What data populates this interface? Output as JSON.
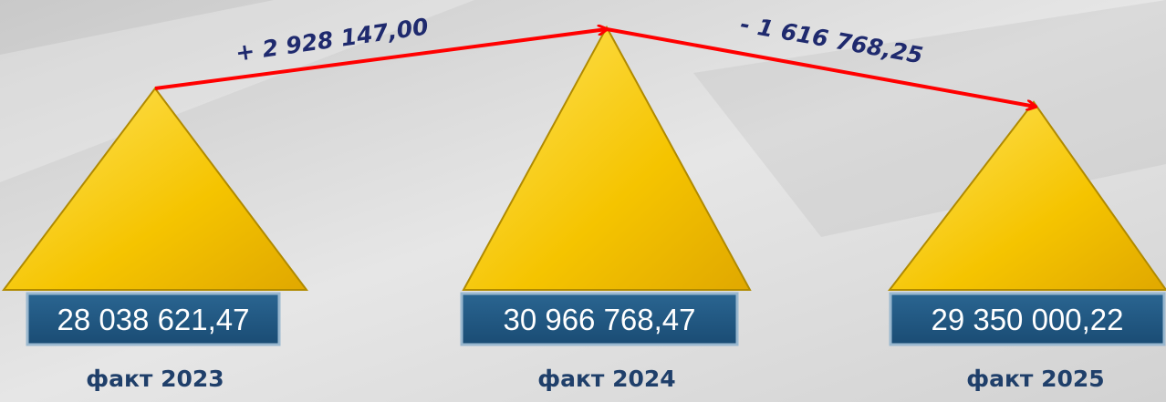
{
  "items": [
    {
      "value": "28 038 621,47",
      "label": "факт 2023"
    },
    {
      "value": "30 966 768,47",
      "label": "факт 2024"
    },
    {
      "value": "29 350 000,22",
      "label": "факт 2025"
    }
  ],
  "changes": [
    "+ 2 928 147,00",
    "- 1 616 768,25"
  ]
}
